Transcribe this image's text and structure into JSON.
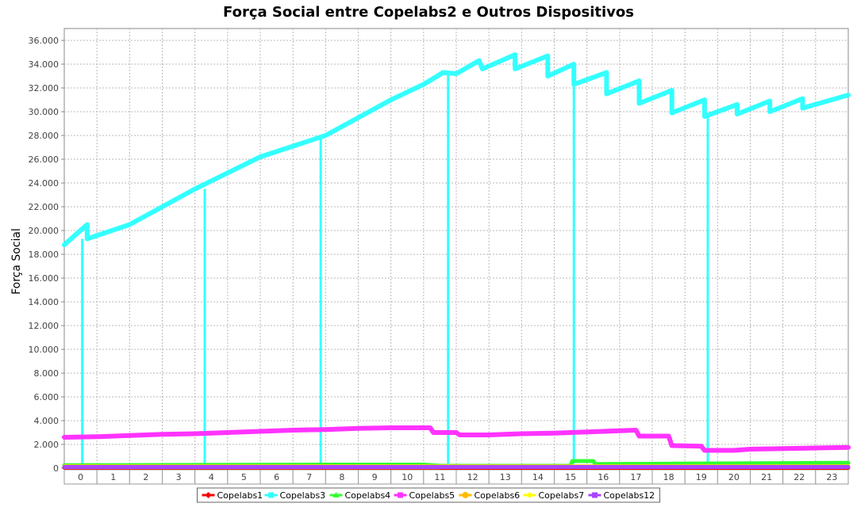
{
  "chart_data": {
    "type": "line",
    "title": "Força Social entre Copelabs2 e Outros Dispositivos",
    "xlabel": "",
    "ylabel": "Força Social",
    "categories": [
      "0",
      "1",
      "2",
      "3",
      "4",
      "5",
      "6",
      "7",
      "8",
      "9",
      "10",
      "11",
      "12",
      "13",
      "14",
      "15",
      "16",
      "17",
      "18",
      "19",
      "20",
      "21",
      "22",
      "23"
    ],
    "ylim": [
      0,
      37000
    ],
    "yticks": [
      0,
      2000,
      4000,
      6000,
      8000,
      10000,
      12000,
      14000,
      16000,
      18000,
      20000,
      22000,
      24000,
      26000,
      28000,
      30000,
      32000,
      34000,
      36000
    ],
    "ytick_labels": [
      "0",
      "2.000",
      "4.000",
      "6.000",
      "8.000",
      "10.000",
      "12.000",
      "14.000",
      "16.000",
      "18.000",
      "20.000",
      "22.000",
      "24.000",
      "26.000",
      "28.000",
      "30.000",
      "32.000",
      "34.000",
      "36.000"
    ],
    "grid": true,
    "legend_position": "bottom",
    "series": [
      {
        "name": "Copelabs1",
        "color": "#ff0000",
        "marker": "diamond",
        "points": [
          [
            0,
            50
          ],
          [
            11.5,
            50
          ],
          [
            11.5,
            30
          ],
          [
            24,
            30
          ]
        ]
      },
      {
        "name": "Copelabs3",
        "color": "#33ffff",
        "marker": "square",
        "points": [
          [
            0,
            18800
          ],
          [
            0.7,
            20500
          ],
          [
            0.7,
            19300
          ],
          [
            2,
            20500
          ],
          [
            4,
            23500
          ],
          [
            6,
            26200
          ],
          [
            8,
            28000
          ],
          [
            9,
            29500
          ],
          [
            10,
            31000
          ],
          [
            11,
            32300
          ],
          [
            11.6,
            33300
          ],
          [
            12,
            33200
          ],
          [
            12.7,
            34300
          ],
          [
            12.8,
            33600
          ],
          [
            13.8,
            34800
          ],
          [
            13.8,
            33600
          ],
          [
            14.8,
            34700
          ],
          [
            14.8,
            33000
          ],
          [
            15.6,
            34000
          ],
          [
            15.6,
            32300
          ],
          [
            16.6,
            33300
          ],
          [
            16.6,
            31500
          ],
          [
            17.6,
            32600
          ],
          [
            17.6,
            30700
          ],
          [
            18.6,
            31800
          ],
          [
            18.6,
            29900
          ],
          [
            19.6,
            31000
          ],
          [
            19.6,
            29600
          ],
          [
            20.6,
            30600
          ],
          [
            20.6,
            29800
          ],
          [
            21.6,
            30900
          ],
          [
            21.6,
            30000
          ],
          [
            22.6,
            31100
          ],
          [
            22.6,
            30300
          ],
          [
            24,
            31400
          ]
        ],
        "drops": [
          {
            "x": 0.55,
            "from": 19300,
            "to": 400
          },
          {
            "x": 4.3,
            "from": 23500,
            "to": 400
          },
          {
            "x": 7.85,
            "from": 28000,
            "to": 400
          },
          {
            "x": 11.75,
            "from": 33300,
            "to": 400
          },
          {
            "x": 15.6,
            "from": 32300,
            "to": 400
          },
          {
            "x": 19.7,
            "from": 29600,
            "to": 400
          }
        ]
      },
      {
        "name": "Copelabs4",
        "color": "#33ff33",
        "marker": "triangle",
        "points": [
          [
            0,
            250
          ],
          [
            8,
            300
          ],
          [
            11,
            300
          ],
          [
            11.5,
            200
          ],
          [
            15.5,
            200
          ],
          [
            15.55,
            600
          ],
          [
            16.2,
            600
          ],
          [
            16.25,
            350
          ],
          [
            24,
            450
          ]
        ]
      },
      {
        "name": "Copelabs5",
        "color": "#ff33ff",
        "marker": "square",
        "points": [
          [
            0,
            2600
          ],
          [
            1,
            2650
          ],
          [
            2,
            2750
          ],
          [
            3,
            2850
          ],
          [
            4,
            2900
          ],
          [
            5,
            3000
          ],
          [
            6,
            3100
          ],
          [
            7,
            3200
          ],
          [
            8,
            3250
          ],
          [
            9,
            3350
          ],
          [
            10,
            3400
          ],
          [
            11.2,
            3400
          ],
          [
            11.3,
            3000
          ],
          [
            12,
            3000
          ],
          [
            12.1,
            2800
          ],
          [
            13,
            2800
          ],
          [
            14,
            2900
          ],
          [
            15,
            2950
          ],
          [
            16,
            3050
          ],
          [
            16.5,
            3100
          ],
          [
            17.5,
            3200
          ],
          [
            17.6,
            2700
          ],
          [
            18.5,
            2700
          ],
          [
            18.6,
            1900
          ],
          [
            19.5,
            1850
          ],
          [
            19.6,
            1500
          ],
          [
            20.5,
            1500
          ],
          [
            21,
            1600
          ],
          [
            22,
            1650
          ],
          [
            23,
            1700
          ],
          [
            24,
            1750
          ]
        ]
      },
      {
        "name": "Copelabs6",
        "color": "#ffbb00",
        "marker": "circle",
        "points": [
          [
            0,
            150
          ],
          [
            24,
            150
          ]
        ]
      },
      {
        "name": "Copelabs7",
        "color": "#ffff00",
        "marker": "diamond",
        "points": [
          [
            0,
            120
          ],
          [
            24,
            120
          ]
        ]
      },
      {
        "name": "Copelabs12",
        "color": "#aa44ff",
        "marker": "square",
        "points": [
          [
            0,
            100
          ],
          [
            24,
            100
          ]
        ]
      }
    ]
  }
}
